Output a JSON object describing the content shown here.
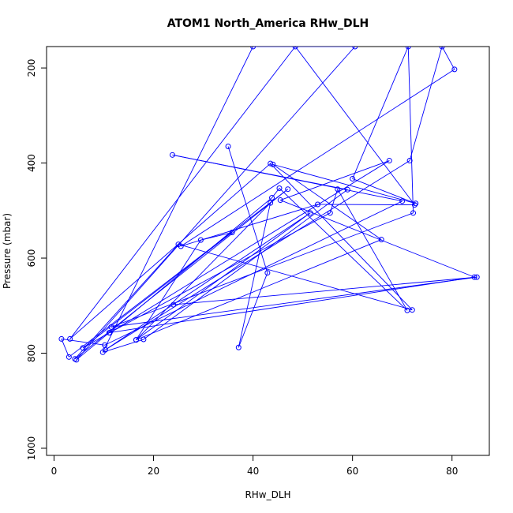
{
  "chart_data": {
    "type": "line",
    "title": "ATOM1 North_America RHw_DLH",
    "xlabel": "RHw_DLH",
    "ylabel": "Pressure (mbar)",
    "xlim": [
      -1.5,
      87.5
    ],
    "ylim": [
      1015,
      155
    ],
    "y_inverted": true,
    "x_ticks": [
      0,
      20,
      40,
      60,
      80
    ],
    "y_ticks": [
      200,
      400,
      600,
      800,
      1000
    ],
    "grid": false,
    "legend": "none",
    "color": "#0000ff",
    "series": [
      {
        "points": [
          [
            35,
            365
          ],
          [
            42.9,
            631
          ],
          [
            37.1,
            788
          ],
          [
            43.5,
            484
          ],
          [
            16.5,
            772
          ],
          [
            51.5,
            505
          ],
          [
            10.3,
            793
          ],
          [
            71.5,
            395
          ],
          [
            78,
            155
          ],
          [
            80.5,
            203
          ],
          [
            25.5,
            575
          ],
          [
            53,
            487
          ],
          [
            72.5,
            488
          ],
          [
            48.5,
            155
          ],
          [
            3.2,
            770
          ],
          [
            43.5,
            401
          ],
          [
            72,
            709
          ],
          [
            25,
            571
          ],
          [
            4.2,
            812
          ],
          [
            47,
            455
          ],
          [
            3,
            808
          ],
          [
            1.5,
            770
          ],
          [
            10.2,
            783
          ],
          [
            70,
            480
          ],
          [
            23.8,
            383
          ],
          [
            59,
            456
          ],
          [
            18,
            771
          ],
          [
            9.8,
            798
          ],
          [
            40,
            155
          ],
          [
            60.5,
            155
          ],
          [
            4.5,
            814
          ],
          [
            43.8,
            473
          ],
          [
            45.3,
            453
          ],
          [
            71,
            710
          ],
          [
            57,
            455
          ],
          [
            55.5,
            505
          ],
          [
            11.2,
            757
          ],
          [
            67.4,
            395
          ],
          [
            45.5,
            478
          ],
          [
            84.5,
            640
          ],
          [
            11.1,
            757
          ],
          [
            5.8,
            789
          ],
          [
            35.8,
            546
          ],
          [
            29.5,
            562
          ],
          [
            16.5,
            772
          ],
          [
            65.8,
            561
          ],
          [
            44,
            403
          ],
          [
            72.7,
            485
          ],
          [
            60,
            433
          ],
          [
            71.2,
            155
          ],
          [
            72.2,
            505
          ],
          [
            11.5,
            745
          ],
          [
            85,
            640
          ],
          [
            24,
            698
          ]
        ]
      }
    ]
  }
}
